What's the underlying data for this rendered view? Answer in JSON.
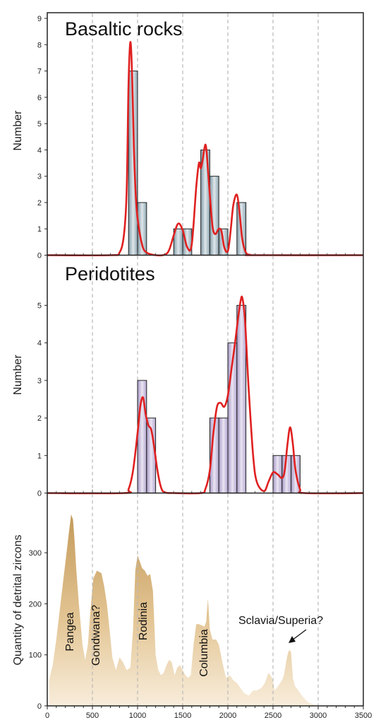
{
  "chart_data": [
    {
      "type": "bar",
      "title": "Basaltic rocks",
      "ylabel": "Number",
      "xlim": [
        0,
        3500
      ],
      "ylim": [
        0,
        9
      ],
      "yticks": [
        0,
        1,
        2,
        3,
        4,
        5,
        6,
        7,
        8,
        9
      ],
      "bin_width": 100,
      "bins": [
        {
          "start": 900,
          "count": 7
        },
        {
          "start": 1000,
          "count": 2
        },
        {
          "start": 1400,
          "count": 1
        },
        {
          "start": 1500,
          "count": 1
        },
        {
          "start": 1700,
          "count": 4
        },
        {
          "start": 1800,
          "count": 3
        },
        {
          "start": 1900,
          "count": 1
        },
        {
          "start": 2100,
          "count": 2
        }
      ],
      "density_curve": {
        "color": "#e02020",
        "x": [
          0,
          700,
          800,
          850,
          880,
          900,
          920,
          940,
          960,
          980,
          1000,
          1050,
          1100,
          1200,
          1300,
          1350,
          1400,
          1450,
          1500,
          1550,
          1600,
          1650,
          1680,
          1700,
          1720,
          1750,
          1770,
          1800,
          1830,
          1860,
          1900,
          1930,
          1960,
          2000,
          2030,
          2060,
          2100,
          2130,
          2160,
          2200,
          2250,
          2300,
          3500
        ],
        "y": [
          0,
          0,
          0.1,
          0.8,
          2.5,
          6.5,
          8.1,
          6.8,
          4.0,
          2.3,
          1.4,
          0.4,
          0.1,
          0,
          0.02,
          0.2,
          0.75,
          1.2,
          0.95,
          0.3,
          0.4,
          2.6,
          3.5,
          3.3,
          3.6,
          4.2,
          3.7,
          2.3,
          1.1,
          0.8,
          1.0,
          0.9,
          0.3,
          0.15,
          0.9,
          1.9,
          2.3,
          1.6,
          0.6,
          0.1,
          0.01,
          0,
          0
        ]
      },
      "vgrid": [
        500,
        1000,
        1500,
        2000,
        2500,
        3000
      ]
    },
    {
      "type": "bar",
      "title": "Peridotites",
      "ylabel": "Number",
      "xlim": [
        0,
        3500
      ],
      "ylim": [
        0,
        5.8
      ],
      "yticks": [
        0,
        1,
        2,
        3,
        4,
        5
      ],
      "bin_width": 100,
      "bins": [
        {
          "start": 1000,
          "count": 3
        },
        {
          "start": 1100,
          "count": 2
        },
        {
          "start": 1800,
          "count": 2
        },
        {
          "start": 1900,
          "count": 2
        },
        {
          "start": 2000,
          "count": 4
        },
        {
          "start": 2100,
          "count": 5
        },
        {
          "start": 2500,
          "count": 1
        },
        {
          "start": 2600,
          "count": 1
        },
        {
          "start": 2700,
          "count": 1
        }
      ],
      "density_curve": {
        "color": "#e02020",
        "x": [
          0,
          850,
          900,
          950,
          1000,
          1030,
          1060,
          1090,
          1120,
          1150,
          1180,
          1220,
          1260,
          1300,
          1400,
          1700,
          1750,
          1800,
          1840,
          1880,
          1920,
          1960,
          2000,
          2040,
          2080,
          2110,
          2140,
          2160,
          2190,
          2230,
          2280,
          2320,
          2400,
          2450,
          2500,
          2550,
          2600,
          2630,
          2660,
          2690,
          2720,
          2750,
          2800,
          2850,
          3500
        ],
        "y": [
          0,
          0,
          0.1,
          0.6,
          1.6,
          2.3,
          2.55,
          2.1,
          1.8,
          1.7,
          1.3,
          0.6,
          0.15,
          0.02,
          0,
          0,
          0.1,
          0.6,
          1.6,
          2.3,
          2.4,
          2.3,
          2.6,
          3.3,
          4.0,
          4.6,
          5.1,
          5.2,
          4.6,
          2.8,
          1.0,
          0.3,
          0.05,
          0.3,
          0.55,
          0.5,
          0.4,
          0.6,
          1.3,
          1.75,
          1.3,
          0.6,
          0.1,
          0,
          0
        ]
      },
      "vgrid": [
        500,
        1000,
        1500,
        2000,
        2500,
        3000
      ]
    },
    {
      "type": "area",
      "ylabel": "Quantity of detrital zircons",
      "xlabel": "",
      "xlim": [
        0,
        3500
      ],
      "ylim": [
        0,
        390
      ],
      "xticks": [
        0,
        500,
        1000,
        1500,
        2000,
        2500,
        3000,
        3500
      ],
      "yticks": [
        0,
        100,
        200,
        300
      ],
      "x": [
        20,
        60,
        100,
        140,
        180,
        210,
        240,
        265,
        285,
        300,
        320,
        350,
        390,
        420,
        450,
        480,
        510,
        550,
        600,
        630,
        660,
        690,
        720,
        760,
        800,
        840,
        880,
        920,
        950,
        975,
        1000,
        1020,
        1050,
        1080,
        1110,
        1140,
        1170,
        1200,
        1230,
        1260,
        1290,
        1320,
        1350,
        1380,
        1410,
        1440,
        1470,
        1500,
        1530,
        1560,
        1590,
        1620,
        1650,
        1680,
        1710,
        1740,
        1760,
        1780,
        1800,
        1830,
        1870,
        1900,
        1940,
        1980,
        2020,
        2060,
        2100,
        2140,
        2180,
        2230,
        2280,
        2320,
        2370,
        2410,
        2450,
        2490,
        2520,
        2560,
        2600,
        2620,
        2640,
        2660,
        2680,
        2700,
        2720,
        2740,
        2780,
        2820,
        2860,
        2900,
        2950,
        3000,
        3020
      ],
      "y": [
        50,
        80,
        130,
        190,
        250,
        295,
        340,
        375,
        365,
        330,
        270,
        200,
        120,
        90,
        120,
        190,
        250,
        265,
        260,
        235,
        200,
        150,
        95,
        70,
        95,
        85,
        70,
        75,
        150,
        265,
        295,
        285,
        270,
        265,
        255,
        258,
        225,
        100,
        70,
        60,
        65,
        80,
        90,
        85,
        60,
        75,
        80,
        70,
        60,
        55,
        60,
        120,
        160,
        160,
        158,
        155,
        165,
        210,
        150,
        130,
        130,
        120,
        85,
        55,
        60,
        50,
        45,
        35,
        25,
        20,
        30,
        30,
        35,
        45,
        65,
        55,
        30,
        40,
        50,
        60,
        80,
        100,
        110,
        105,
        55,
        40,
        30,
        20,
        12,
        6,
        3,
        1,
        0
      ],
      "annotations": {
        "pangea": {
          "text": "Pangea",
          "x": 250
        },
        "gondwana": {
          "text": "Gondwana?",
          "x": 600
        },
        "rodinia": {
          "text": "Rodinia",
          "x": 1090
        },
        "columbia": {
          "text": "Columbia",
          "x": 1820
        },
        "sclavia": {
          "text": "Sclavia/Superia?",
          "x": 2700
        }
      },
      "vgrid": [
        500,
        1000,
        1500,
        2000,
        2500,
        3000
      ]
    }
  ]
}
